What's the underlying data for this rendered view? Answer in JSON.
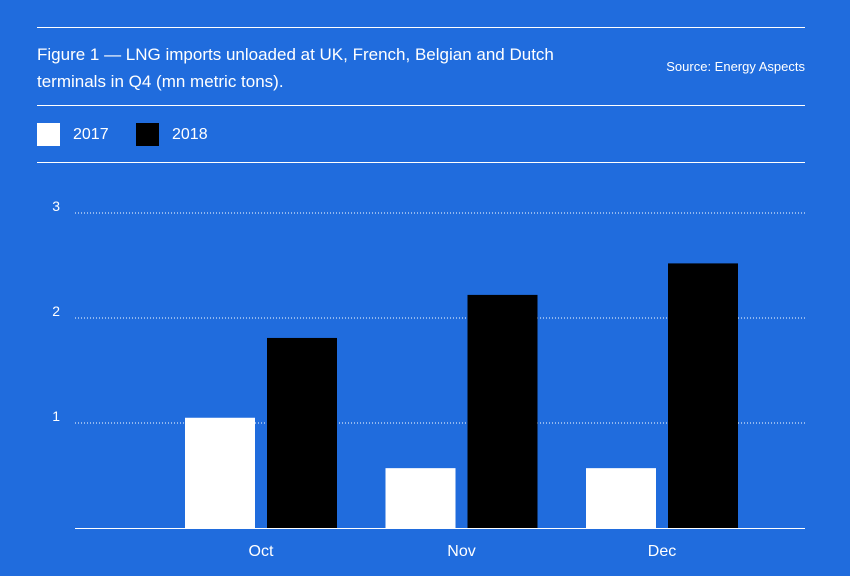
{
  "chart_data": {
    "type": "bar",
    "title": "Figure 1 — LNG imports unloaded at UK, French, Belgian and Dutch terminals in Q4 (mn metric tons).",
    "source": "Source: Energy Aspects",
    "categories": [
      "Oct",
      "Nov",
      "Dec"
    ],
    "series": [
      {
        "name": "2017",
        "color": "#ffffff",
        "values": [
          1.05,
          0.57,
          0.57
        ]
      },
      {
        "name": "2018",
        "color": "#000000",
        "values": [
          1.81,
          2.22,
          2.52
        ]
      }
    ],
    "yticks": [
      "1",
      "2",
      "3"
    ],
    "ylim": [
      0,
      3
    ],
    "grid": true,
    "legend": "top-left",
    "xlabel": "",
    "ylabel": ""
  }
}
